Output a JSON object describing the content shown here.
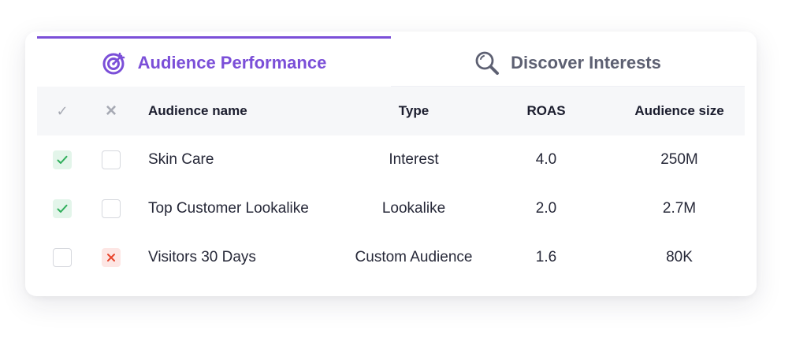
{
  "tabs": [
    {
      "label": "Audience Performance",
      "icon": "target-icon",
      "active": true
    },
    {
      "label": "Discover Interests",
      "icon": "search-icon",
      "active": false
    }
  ],
  "table": {
    "header": {
      "check": "✓",
      "x": "×",
      "name": "Audience name",
      "type": "Type",
      "roas": "ROAS",
      "size": "Audience size"
    },
    "rows": [
      {
        "check": true,
        "exclude": false,
        "name": "Skin Care",
        "type": "Interest",
        "roas": "4.0",
        "size": "250M"
      },
      {
        "check": true,
        "exclude": false,
        "name": "Top Customer Lookalike",
        "type": "Lookalike",
        "roas": "2.0",
        "size": "2.7M"
      },
      {
        "check": false,
        "exclude": true,
        "name": "Visitors 30 Days",
        "type": "Custom Audience",
        "roas": "1.6",
        "size": "80K"
      }
    ]
  },
  "colors": {
    "accent": "#7b4fd8",
    "check_green": "#2fae5b",
    "check_green_bg": "#e3f5ea",
    "exclude_red": "#e8452c",
    "exclude_red_bg": "#fde6e4",
    "header_bg": "#f6f7f9"
  }
}
